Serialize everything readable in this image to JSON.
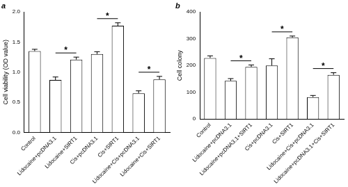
{
  "chart_data": [
    {
      "type": "bar",
      "title": "a",
      "ylabel": "Cell viability (OD value)",
      "categories": [
        "Control",
        "Lidocaine+pcDNA3.1",
        "Lidocaine+SIRT1",
        "Cis+pcDNA3.1",
        "Cis+SIRT1",
        "Lidocaine+Cis+pcDNA3.1",
        "Lidocaine+Cis+SIRT1"
      ],
      "values": [
        1.35,
        0.87,
        1.21,
        1.3,
        1.77,
        0.65,
        0.88
      ],
      "errors": [
        0.03,
        0.05,
        0.04,
        0.04,
        0.05,
        0.04,
        0.05
      ],
      "color": "#ffffff",
      "ylim": [
        0,
        2.0
      ],
      "yticks": [
        {
          "value": 0,
          "label": "0.0"
        },
        0.5,
        {
          "value": 1.0,
          "label": "1.0"
        },
        1.5,
        {
          "value": 2.0,
          "label": "2.0"
        }
      ],
      "grid": false,
      "significance": [
        {
          "between": [
            "Lidocaine+pcDNA3.1",
            "Lidocaine+SIRT1"
          ],
          "label": "*"
        },
        {
          "between": [
            "Cis+pcDNA3.1",
            "Cis+SIRT1"
          ],
          "label": "*"
        },
        {
          "between": [
            "Lidocaine+Cis+pcDNA3.1",
            "Lidocaine+Cis+SIRT1"
          ],
          "label": "*"
        }
      ]
    },
    {
      "type": "bar",
      "title": "b",
      "ylabel": "Cell colony",
      "categories": [
        "Control",
        "Lidocaine+pcDNA3.1",
        "Lidocaine+pcDNA3.1+SIRT1",
        "Cis+pcDNA3.1",
        "Cis+SIRT1",
        "Lidocaine+Cis+pcDNA3.1",
        "Lidocaine+pcDNA3.1+Cis+SIRT1"
      ],
      "values": [
        228,
        143,
        195,
        200,
        305,
        82,
        165
      ],
      "errors": [
        8,
        8,
        7,
        25,
        5,
        6,
        8
      ],
      "color": "#ffffff",
      "ylim": [
        0,
        400
      ],
      "yticks": [
        0,
        100,
        200,
        300,
        400
      ],
      "grid": false,
      "significance": [
        {
          "between": [
            "Lidocaine+pcDNA3.1",
            "Lidocaine+pcDNA3.1+SIRT1"
          ],
          "label": "*"
        },
        {
          "between": [
            "Cis+pcDNA3.1",
            "Cis+SIRT1"
          ],
          "label": "*"
        },
        {
          "between": [
            "Lidocaine+Cis+pcDNA3.1",
            "Lidocaine+pcDNA3.1+Cis+SIRT1"
          ],
          "label": "*"
        }
      ]
    }
  ]
}
